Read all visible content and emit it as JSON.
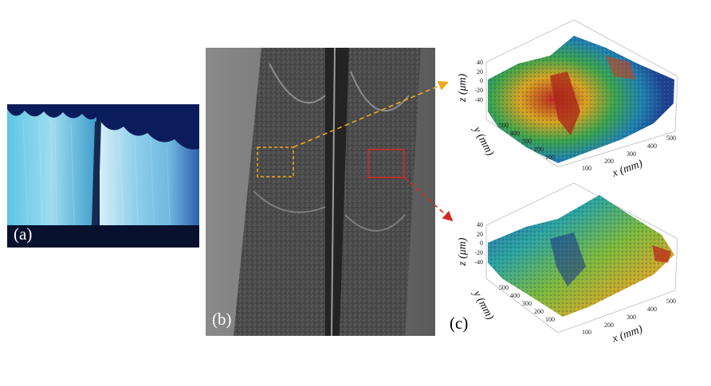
{
  "labels": {
    "a": "(a)",
    "b": "(b)",
    "c": "(c)"
  },
  "colors": {
    "yellow_box": "#f0a81a",
    "red_box": "#d42a20"
  },
  "plots": [
    {
      "z_label": "z (μm)",
      "y_label": "y (mm)",
      "x_label": "x (mm)",
      "z_ticks": [
        "40",
        "20",
        "0",
        "-20",
        "-40"
      ],
      "y_ticks": [
        "500",
        "400",
        "300",
        "200",
        "100"
      ],
      "x_ticks": [
        "100",
        "200",
        "300",
        "400",
        "500"
      ]
    },
    {
      "z_label": "z (μm)",
      "y_label": "y (mm)",
      "x_label": "x (mm)",
      "z_ticks": [
        "40",
        "20",
        "0",
        "-20",
        "-40"
      ],
      "y_ticks": [
        "500",
        "400",
        "300",
        "200",
        "100"
      ],
      "x_ticks": [
        "100",
        "200",
        "300",
        "400",
        "500"
      ]
    }
  ]
}
